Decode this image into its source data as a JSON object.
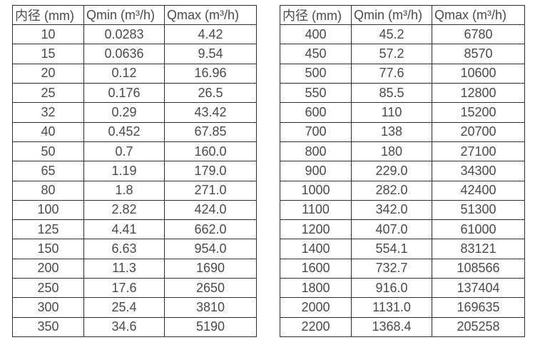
{
  "style": {
    "background_color": "#ffffff",
    "border_color": "#2e2e2e",
    "text_color": "#4a4a4a"
  },
  "tables": [
    {
      "name": "small-diameter-flow-rates",
      "headers": [
        "内径 (mm)",
        "Qmin (m³/h)",
        "Qmax (m³/h)"
      ],
      "rows": [
        [
          "10",
          "0.0283",
          "4.42"
        ],
        [
          "15",
          "0.0636",
          "9.54"
        ],
        [
          "20",
          "0.12",
          "16.96"
        ],
        [
          "25",
          "0.176",
          "26.5"
        ],
        [
          "32",
          "0.29",
          "43.42"
        ],
        [
          "40",
          "0.452",
          "67.85"
        ],
        [
          "50",
          "0.7",
          "160.0"
        ],
        [
          "65",
          "1.19",
          "179.0"
        ],
        [
          "80",
          "1.8",
          "271.0"
        ],
        [
          "100",
          "2.82",
          "424.0"
        ],
        [
          "125",
          "4.41",
          "662.0"
        ],
        [
          "150",
          "6.63",
          "954.0"
        ],
        [
          "200",
          "11.3",
          "1690"
        ],
        [
          "250",
          "17.6",
          "2650"
        ],
        [
          "300",
          "25.4",
          "3810"
        ],
        [
          "350",
          "34.6",
          "5190"
        ]
      ]
    },
    {
      "name": "large-diameter-flow-rates",
      "headers": [
        "内径 (mm)",
        "Qmin (m³/h)",
        "Qmax (m³/h)"
      ],
      "rows": [
        [
          "400",
          "45.2",
          "6780"
        ],
        [
          "450",
          "57.2",
          "8570"
        ],
        [
          "500",
          "77.6",
          "10600"
        ],
        [
          "550",
          "85.5",
          "12800"
        ],
        [
          "600",
          "110",
          "15200"
        ],
        [
          "700",
          "138",
          "20700"
        ],
        [
          "800",
          "180",
          "27100"
        ],
        [
          "900",
          "229.0",
          "34300"
        ],
        [
          "1000",
          "282.0",
          "42400"
        ],
        [
          "1100",
          "342.0",
          "51300"
        ],
        [
          "1200",
          "407.0",
          "61000"
        ],
        [
          "1400",
          "554.1",
          "83121"
        ],
        [
          "1600",
          "732.7",
          "108566"
        ],
        [
          "1800",
          "916.0",
          "137404"
        ],
        [
          "2000",
          "1131.0",
          "169635"
        ],
        [
          "2200",
          "1368.4",
          "205258"
        ]
      ]
    }
  ]
}
